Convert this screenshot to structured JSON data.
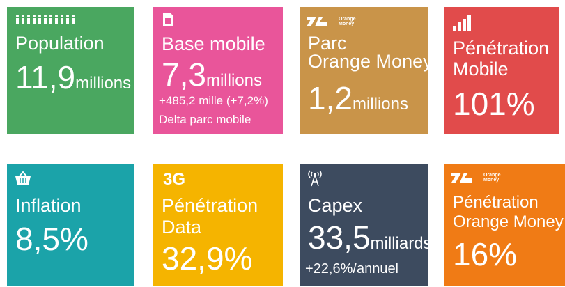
{
  "tiles": [
    {
      "label": [
        "Population"
      ],
      "value": "11,9",
      "unit": "millions"
    },
    {
      "label": [
        "Base mobile"
      ],
      "value": "7,3",
      "unit": "millions",
      "notes": [
        "+485,2 mille (+7,2%)",
        "Delta parc mobile"
      ]
    },
    {
      "logo": [
        "Orange",
        "Money"
      ],
      "label": [
        "Parc",
        "Orange Money"
      ],
      "value": "1,2",
      "unit": "millions"
    },
    {
      "label": [
        "Pénétration",
        "Mobile"
      ],
      "value": "101%"
    },
    {
      "label": [
        "Inflation"
      ],
      "value": "8,5%"
    },
    {
      "badge": "3G",
      "label": [
        "Pénétration",
        "Data"
      ],
      "value": "32,9%"
    },
    {
      "label": [
        "Capex"
      ],
      "value": "33,5",
      "unit": "milliards",
      "notes": [
        "+22,6%/annuel"
      ]
    },
    {
      "logo": [
        "Orange",
        "Money"
      ],
      "label": [
        "Pénétration",
        "Orange Money"
      ],
      "value": "16%"
    }
  ]
}
